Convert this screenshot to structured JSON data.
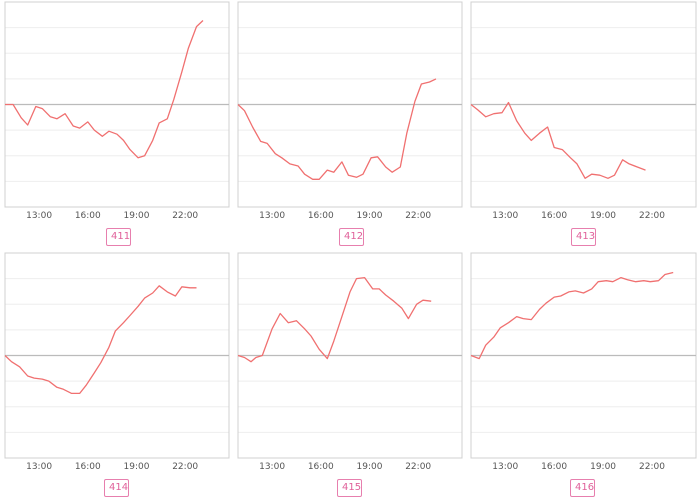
{
  "chart_data": [
    {
      "type": "line",
      "label": "411",
      "x_ticks": [
        "13:00",
        "16:00",
        "19:00",
        "22:00"
      ],
      "x_tick_hours": [
        13,
        16,
        19,
        22
      ],
      "x_range": [
        10.9,
        24.7
      ],
      "ylim": [
        -1.0,
        1.0
      ],
      "baseline": 0,
      "grid": true,
      "x": [
        10.9,
        11.4,
        11.9,
        12.3,
        12.8,
        13.2,
        13.7,
        14.1,
        14.6,
        15.1,
        15.5,
        16.0,
        16.4,
        16.9,
        17.3,
        17.8,
        18.2,
        18.6,
        19.1,
        19.5,
        20.0,
        20.4,
        20.9,
        21.3,
        21.8,
        22.2,
        22.7,
        23.1
      ],
      "y": [
        0.0,
        0.0,
        -0.13,
        -0.2,
        -0.02,
        -0.04,
        -0.12,
        -0.14,
        -0.09,
        -0.21,
        -0.23,
        -0.17,
        -0.25,
        -0.31,
        -0.26,
        -0.29,
        -0.35,
        -0.44,
        -0.52,
        -0.5,
        -0.35,
        -0.18,
        -0.14,
        0.05,
        0.32,
        0.55,
        0.76,
        0.82
      ],
      "color": "#f07070"
    },
    {
      "type": "line",
      "label": "412",
      "x_ticks": [
        "13:00",
        "16:00",
        "19:00",
        "22:00"
      ],
      "x_tick_hours": [
        13,
        16,
        19,
        22
      ],
      "x_range": [
        10.9,
        24.7
      ],
      "ylim": [
        -1.0,
        1.0
      ],
      "baseline": 0,
      "grid": true,
      "x": [
        10.9,
        11.3,
        11.8,
        12.3,
        12.7,
        13.2,
        13.6,
        14.1,
        14.6,
        15.0,
        15.5,
        15.9,
        16.4,
        16.8,
        17.3,
        17.7,
        18.2,
        18.6,
        19.1,
        19.5,
        20.0,
        20.4,
        20.9,
        21.3,
        21.8,
        22.2,
        22.7,
        23.1
      ],
      "y": [
        0.0,
        -0.06,
        -0.22,
        -0.36,
        -0.38,
        -0.48,
        -0.52,
        -0.58,
        -0.6,
        -0.68,
        -0.73,
        -0.73,
        -0.64,
        -0.66,
        -0.56,
        -0.69,
        -0.71,
        -0.68,
        -0.52,
        -0.51,
        -0.61,
        -0.66,
        -0.61,
        -0.28,
        0.03,
        0.2,
        0.22,
        0.25
      ],
      "color": "#f07070"
    },
    {
      "type": "line",
      "label": "413",
      "x_ticks": [
        "13:00",
        "16:00",
        "19:00",
        "22:00"
      ],
      "x_tick_hours": [
        13,
        16,
        19,
        22
      ],
      "x_range": [
        10.9,
        24.7
      ],
      "ylim": [
        -1.0,
        1.0
      ],
      "baseline": 0,
      "grid": true,
      "x": [
        10.9,
        11.3,
        11.8,
        12.3,
        12.8,
        13.2,
        13.7,
        14.2,
        14.6,
        15.1,
        15.6,
        16.0,
        16.5,
        17.0,
        17.4,
        17.9,
        18.3,
        18.8,
        19.3,
        19.7,
        20.2,
        20.6,
        21.1,
        21.6
      ],
      "y": [
        0.0,
        -0.05,
        -0.12,
        -0.09,
        -0.08,
        0.02,
        -0.16,
        -0.28,
        -0.35,
        -0.28,
        -0.22,
        -0.42,
        -0.44,
        -0.52,
        -0.58,
        -0.72,
        -0.68,
        -0.69,
        -0.72,
        -0.69,
        -0.54,
        -0.58,
        -0.61,
        -0.64
      ],
      "color": "#f07070"
    },
    {
      "type": "line",
      "label": "414",
      "x_ticks": [
        "13:00",
        "16:00",
        "19:00",
        "22:00"
      ],
      "x_tick_hours": [
        13,
        16,
        19,
        22
      ],
      "x_range": [
        10.9,
        24.7
      ],
      "ylim": [
        -1.0,
        1.0
      ],
      "baseline": 0,
      "grid": true,
      "x": [
        10.9,
        11.3,
        11.8,
        12.3,
        12.7,
        13.2,
        13.6,
        14.1,
        14.5,
        15.0,
        15.5,
        15.9,
        16.4,
        16.8,
        17.3,
        17.7,
        18.2,
        18.6,
        19.1,
        19.5,
        20.0,
        20.4,
        20.9,
        21.4,
        21.8,
        22.3,
        22.7
      ],
      "y": [
        0.0,
        -0.06,
        -0.11,
        -0.2,
        -0.22,
        -0.23,
        -0.25,
        -0.31,
        -0.33,
        -0.37,
        -0.37,
        -0.29,
        -0.17,
        -0.07,
        0.08,
        0.24,
        0.32,
        0.39,
        0.48,
        0.56,
        0.61,
        0.68,
        0.62,
        0.58,
        0.67,
        0.66,
        0.66
      ],
      "color": "#f07070"
    },
    {
      "type": "line",
      "label": "415",
      "x_ticks": [
        "13:00",
        "16:00",
        "19:00",
        "22:00"
      ],
      "x_tick_hours": [
        13,
        16,
        19,
        22
      ],
      "x_range": [
        10.9,
        24.7
      ],
      "ylim": [
        -1.0,
        1.0
      ],
      "baseline": 0,
      "grid": true,
      "x": [
        10.9,
        11.3,
        11.7,
        12.0,
        12.4,
        13.0,
        13.5,
        14.0,
        14.5,
        15.0,
        15.4,
        15.9,
        16.4,
        16.8,
        17.3,
        17.8,
        18.2,
        18.7,
        19.2,
        19.6,
        20.0,
        20.5,
        21.0,
        21.4,
        21.9,
        22.3,
        22.8
      ],
      "y": [
        0.0,
        -0.02,
        -0.06,
        -0.02,
        0.0,
        0.26,
        0.41,
        0.32,
        0.34,
        0.26,
        0.19,
        0.06,
        -0.03,
        0.14,
        0.38,
        0.62,
        0.75,
        0.76,
        0.65,
        0.65,
        0.59,
        0.53,
        0.46,
        0.36,
        0.5,
        0.54,
        0.53
      ],
      "color": "#f07070"
    },
    {
      "type": "line",
      "label": "416",
      "x_ticks": [
        "13:00",
        "16:00",
        "19:00",
        "22:00"
      ],
      "x_tick_hours": [
        13,
        16,
        19,
        22
      ],
      "x_range": [
        10.9,
        24.7
      ],
      "ylim": [
        -1.0,
        1.0
      ],
      "baseline": 0,
      "grid": true,
      "x": [
        10.9,
        11.4,
        11.8,
        12.3,
        12.7,
        13.2,
        13.7,
        14.1,
        14.6,
        15.1,
        15.5,
        16.0,
        16.4,
        16.9,
        17.3,
        17.8,
        18.3,
        18.7,
        19.2,
        19.6,
        20.1,
        20.5,
        21.0,
        21.5,
        21.9,
        22.4,
        22.8,
        23.3
      ],
      "y": [
        0.0,
        -0.03,
        0.1,
        0.18,
        0.27,
        0.32,
        0.38,
        0.36,
        0.35,
        0.45,
        0.51,
        0.57,
        0.58,
        0.62,
        0.63,
        0.61,
        0.65,
        0.72,
        0.73,
        0.72,
        0.76,
        0.74,
        0.72,
        0.73,
        0.72,
        0.73,
        0.79,
        0.81
      ],
      "color": "#f07070"
    }
  ]
}
